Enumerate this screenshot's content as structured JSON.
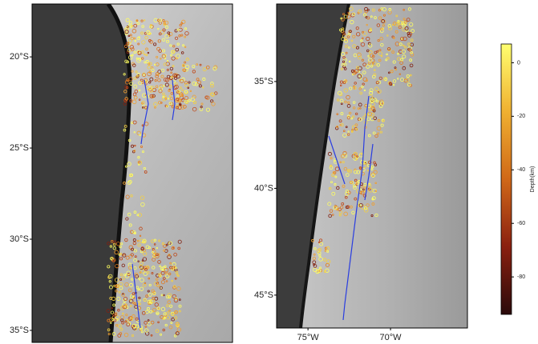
{
  "maps": [
    {
      "latlim": [
        -35.66,
        -17.1
      ],
      "lat_ticks": [
        {
          "value": -20,
          "label": "20°S"
        },
        {
          "value": -25,
          "label": "25°S"
        },
        {
          "value": -30,
          "label": "30°S"
        },
        {
          "value": -35,
          "label": "35°S"
        }
      ]
    },
    {
      "latlim": [
        -46.54,
        -31.37
      ],
      "lonlim": [
        -76.9,
        -65.34
      ],
      "lat_ticks": [
        {
          "value": -35,
          "label": "35°S"
        },
        {
          "value": -40,
          "label": "40°S"
        },
        {
          "value": -45,
          "label": "45°S"
        }
      ],
      "lon_ticks": [
        {
          "value": -75,
          "label": "75°W"
        },
        {
          "value": -70,
          "label": "70°W"
        }
      ]
    }
  ],
  "colorbar": {
    "label": "Depth(km)",
    "lim": [
      -94,
      7
    ],
    "ticks": [
      0,
      -20,
      -40,
      -60,
      -80
    ]
  }
}
